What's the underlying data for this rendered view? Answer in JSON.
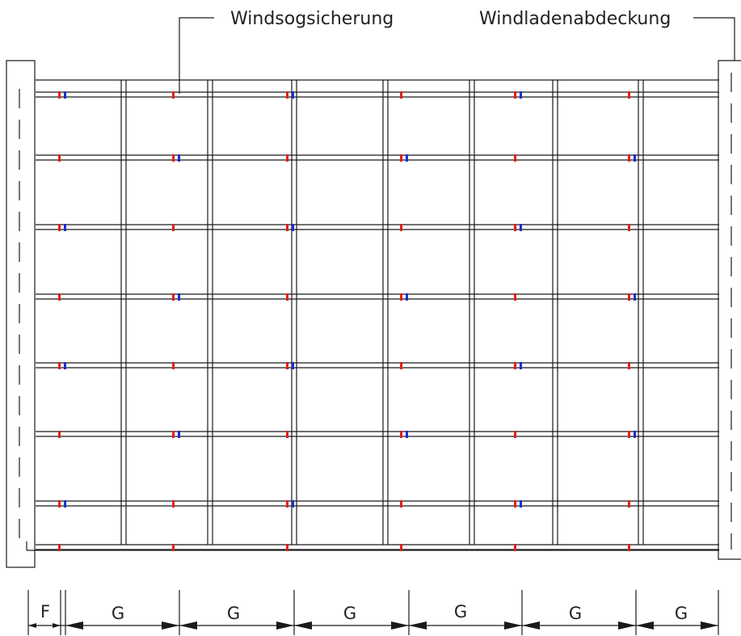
{
  "callouts": {
    "wind_uplift": "Windsogsicherung",
    "wind_board_cover": "Windladenabdeckung"
  },
  "dimensions": {
    "overhang_label": "F",
    "bay_labels": [
      "G",
      "G",
      "G",
      "G",
      "G",
      "G"
    ]
  },
  "colors": {
    "line": "#1a1a1a",
    "fixing_red": "#e0201a",
    "fixing_blue": "#1a2fd0"
  }
}
